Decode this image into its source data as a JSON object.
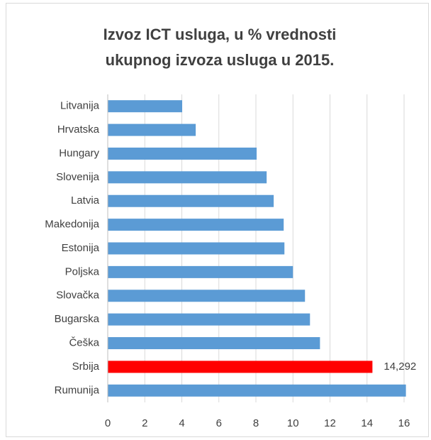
{
  "chart_data": {
    "type": "bar",
    "orientation": "horizontal",
    "title": [
      "Izvoz ICT usluga, u % vrednosti",
      "ukupnog izvoza usluga u 2015."
    ],
    "categories": [
      "Litvanija",
      "Hrvatska",
      "Hungary",
      "Slovenija",
      "Latvia",
      "Makedonija",
      "Estonija",
      "Poljska",
      "Slovačka",
      "Bugarska",
      "Češka",
      "Srbija",
      "Rumunija"
    ],
    "values": [
      4.02,
      4.75,
      8.04,
      8.58,
      8.96,
      9.5,
      9.54,
      10.0,
      10.65,
      10.92,
      11.46,
      14.292,
      16.1
    ],
    "value_labels": [
      null,
      null,
      null,
      null,
      null,
      null,
      null,
      null,
      null,
      null,
      null,
      "14,292",
      null
    ],
    "colors": [
      "#5b9bd5",
      "#5b9bd5",
      "#5b9bd5",
      "#5b9bd5",
      "#5b9bd5",
      "#5b9bd5",
      "#5b9bd5",
      "#5b9bd5",
      "#5b9bd5",
      "#5b9bd5",
      "#5b9bd5",
      "#ff0000",
      "#5b9bd5"
    ],
    "xlim": [
      0,
      16
    ],
    "xticks": [
      0,
      2,
      4,
      6,
      8,
      10,
      12,
      14,
      16
    ],
    "grid": true
  }
}
